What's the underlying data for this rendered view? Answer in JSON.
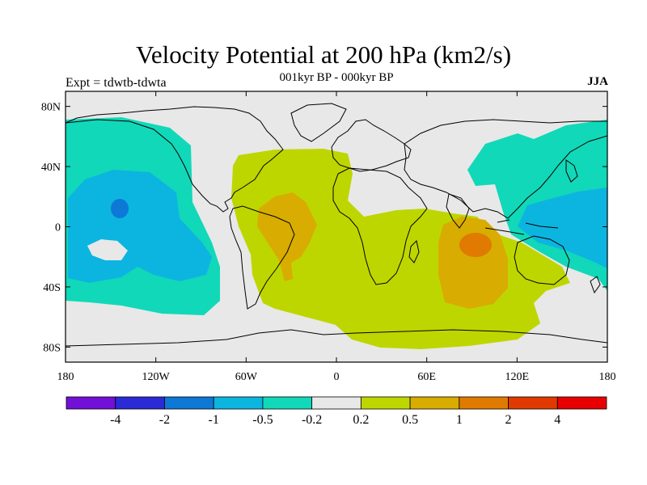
{
  "title": "Velocity Potential at 200 hPa (km2/s)",
  "subtitle": "001kyr BP - 000kyr BP",
  "expt_label": "Expt = tdwtb-tdwta",
  "season": "JJA",
  "map": {
    "lon_range": [
      -180,
      180
    ],
    "lat_range": [
      -90,
      90
    ],
    "projection": "cylindrical-equidistant",
    "lon_ticks": [
      {
        "lon": -180,
        "label": "180"
      },
      {
        "lon": -120,
        "label": "120W"
      },
      {
        "lon": -60,
        "label": "60W"
      },
      {
        "lon": 0,
        "label": "0"
      },
      {
        "lon": 60,
        "label": "60E"
      },
      {
        "lon": 120,
        "label": "120E"
      },
      {
        "lon": 180,
        "label": "180"
      }
    ],
    "lat_ticks": [
      {
        "lat": 80,
        "label": "80N"
      },
      {
        "lat": 40,
        "label": "40N"
      },
      {
        "lat": 0,
        "label": "0"
      },
      {
        "lat": -40,
        "label": "40S"
      },
      {
        "lat": -80,
        "label": "80S"
      }
    ]
  },
  "colorbar": {
    "colors": [
      "#7310d8",
      "#2a2ad6",
      "#0d78d6",
      "#0cb5e0",
      "#11d8b8",
      "#e8e8e8",
      "#bed600",
      "#d8ac00",
      "#e07a00",
      "#e03a00",
      "#e80000"
    ],
    "labels": [
      "-4",
      "-2",
      "-1",
      "-0.5",
      "-0.2",
      "0.2",
      "0.5",
      "1",
      "2",
      "4"
    ]
  },
  "colors": {
    "neutral": "#e8e8e8",
    "neg_weak": "#11d8b8",
    "neg_mid": "#0cb5e0",
    "neg_strong": "#0d78d6",
    "pos_weak": "#bed600",
    "pos_mid": "#d8ac00",
    "pos_strong": "#e07a00"
  }
}
